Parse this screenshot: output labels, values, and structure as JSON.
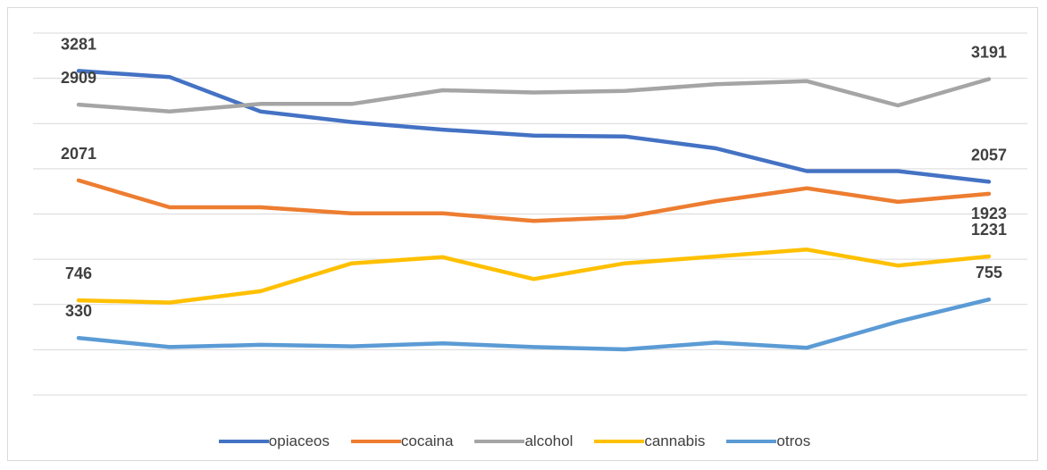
{
  "chart_data": {
    "type": "line",
    "title": "",
    "xlabel": "",
    "ylabel": "",
    "x": [
      "1",
      "2",
      "3",
      "4",
      "5",
      "6",
      "7",
      "8",
      "9",
      "10",
      "11"
    ],
    "ylim": [
      -300,
      3700
    ],
    "grid": true,
    "legend_position": "bottom",
    "series": [
      {
        "name": "opiaceos",
        "color": "#4472C4",
        "values": [
          3281,
          3214,
          2833,
          2716,
          2632,
          2566,
          2557,
          2426,
          2174,
          2174,
          2057
        ]
      },
      {
        "name": "cocaina",
        "color": "#ED7D31",
        "values": [
          2071,
          1774,
          1774,
          1707,
          1707,
          1623,
          1665,
          1842,
          1984,
          1834,
          1923
        ]
      },
      {
        "name": "alcohol",
        "color": "#A5A5A5",
        "values": [
          2909,
          2833,
          2917,
          2917,
          3068,
          3043,
          3060,
          3135,
          3169,
          2900,
          3191
        ]
      },
      {
        "name": "cannabis",
        "color": "#FFC000",
        "values": [
          746,
          721,
          847,
          1155,
          1223,
          981,
          1155,
          1231,
          1307,
          1130,
          1231
        ]
      },
      {
        "name": "otros",
        "color": "#5B9BD5",
        "values": [
          330,
          229,
          254,
          237,
          271,
          229,
          204,
          279,
          221,
          510,
          755
        ]
      }
    ],
    "data_labels": [
      {
        "series": "opiaceos",
        "index": 0,
        "text": "3281",
        "anchor": "above"
      },
      {
        "series": "opiaceos",
        "index": 10,
        "text": "2057",
        "anchor": "above"
      },
      {
        "series": "alcohol",
        "index": 0,
        "text": "2909",
        "anchor": "above"
      },
      {
        "series": "alcohol",
        "index": 10,
        "text": "3191",
        "anchor": "above"
      },
      {
        "series": "cocaina",
        "index": 0,
        "text": "2071",
        "anchor": "above"
      },
      {
        "series": "cocaina",
        "index": 10,
        "text": "1923",
        "anchor": "below"
      },
      {
        "series": "cannabis",
        "index": 0,
        "text": "746",
        "anchor": "above"
      },
      {
        "series": "cannabis",
        "index": 10,
        "text": "1231",
        "anchor": "above"
      },
      {
        "series": "otros",
        "index": 0,
        "text": "330",
        "anchor": "above"
      },
      {
        "series": "otros",
        "index": 10,
        "text": "755",
        "anchor": "above"
      }
    ]
  }
}
